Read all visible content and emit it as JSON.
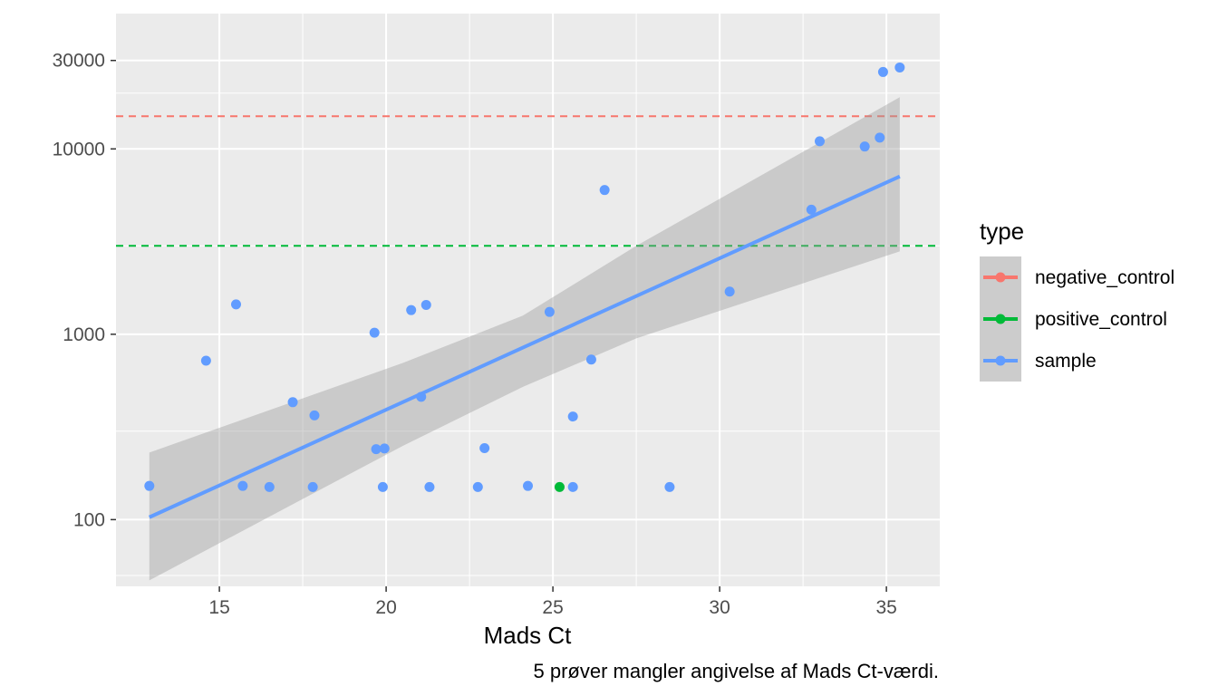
{
  "chart_data": {
    "type": "scatter",
    "xlabel": "Mads Ct",
    "ylabel": "",
    "caption": "5 prøver mangler angivelse af Mads Ct-værdi.",
    "xlim": [
      11.9,
      36.6
    ],
    "ylim_log10": [
      1.64,
      4.73
    ],
    "y_scale": "log10",
    "x_ticks": [
      15,
      20,
      25,
      30,
      35
    ],
    "x_tick_labels": [
      "15",
      "20",
      "25",
      "30",
      "35"
    ],
    "y_ticks": [
      100,
      1000,
      10000,
      30000
    ],
    "y_tick_labels": [
      "100",
      "1000",
      "10000",
      "30000"
    ],
    "grid": true,
    "legend": {
      "title": "type",
      "position": "right",
      "entries": [
        {
          "label": "negative_control",
          "color": "#F8766D"
        },
        {
          "label": "positive_control",
          "color": "#00BA38"
        },
        {
          "label": "sample",
          "color": "#619CFF"
        }
      ]
    },
    "hlines": [
      {
        "series": "negative_control",
        "y": 15000,
        "color": "#F8766D",
        "style": "dashed"
      },
      {
        "series": "positive_control",
        "y": 3000,
        "color": "#00BA38",
        "style": "dashed"
      }
    ],
    "fit": {
      "series": "sample",
      "method": "lm",
      "color": "#619CFF",
      "ribbon_color": "#999999",
      "line": [
        [
          12.9,
          103
        ],
        [
          35.4,
          7100
        ]
      ],
      "ribbon": [
        {
          "x": 12.9,
          "lo": 47,
          "hi": 230
        },
        {
          "x": 20.5,
          "lo": 250,
          "hi": 700
        },
        {
          "x": 24.1,
          "lo": 520,
          "hi": 1260
        },
        {
          "x": 27.5,
          "lo": 950,
          "hi": 3000
        },
        {
          "x": 35.4,
          "lo": 2800,
          "hi": 19000
        }
      ]
    },
    "series": [
      {
        "name": "sample",
        "color": "#619CFF",
        "points": [
          [
            12.9,
            152
          ],
          [
            14.6,
            720
          ],
          [
            15.5,
            1450
          ],
          [
            15.7,
            152
          ],
          [
            16.5,
            150
          ],
          [
            17.2,
            430
          ],
          [
            17.8,
            150
          ],
          [
            17.85,
            365
          ],
          [
            19.65,
            1020
          ],
          [
            19.7,
            240
          ],
          [
            19.9,
            150
          ],
          [
            19.95,
            242
          ],
          [
            20.75,
            1350
          ],
          [
            21.05,
            460
          ],
          [
            21.2,
            1440
          ],
          [
            21.3,
            150
          ],
          [
            22.75,
            150
          ],
          [
            22.95,
            243
          ],
          [
            24.25,
            152
          ],
          [
            24.9,
            1320
          ],
          [
            25.6,
            150
          ],
          [
            25.6,
            360
          ],
          [
            26.15,
            730
          ],
          [
            26.55,
            6000
          ],
          [
            28.5,
            150
          ],
          [
            30.3,
            1700
          ],
          [
            32.75,
            4700
          ],
          [
            33.0,
            11000
          ],
          [
            34.35,
            10300
          ],
          [
            34.8,
            11500
          ],
          [
            34.9,
            26000
          ],
          [
            35.4,
            27500
          ]
        ]
      },
      {
        "name": "positive_control",
        "color": "#00BA38",
        "points": [
          [
            25.2,
            150
          ]
        ]
      }
    ]
  }
}
